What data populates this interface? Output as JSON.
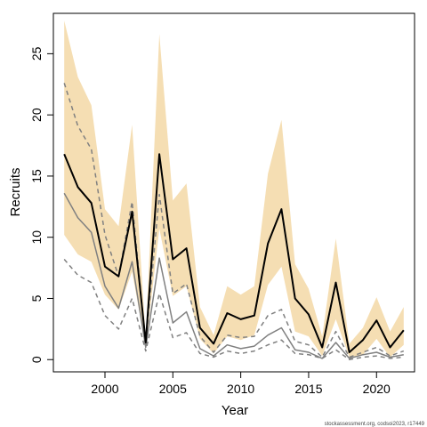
{
  "chart_data": {
    "type": "line",
    "xlabel": "Year",
    "ylabel": "Recruits",
    "xlim": [
      1996.2,
      2022.8
    ],
    "ylim": [
      -1.0,
      28.3
    ],
    "x_ticks": [
      2000,
      2005,
      2010,
      2015,
      2020
    ],
    "y_ticks": [
      0,
      5,
      10,
      15,
      20,
      25
    ],
    "grid": false,
    "x": [
      1997,
      1998,
      1999,
      2000,
      2001,
      2002,
      2003,
      2004,
      2005,
      2006,
      2007,
      2008,
      2009,
      2010,
      2011,
      2012,
      2013,
      2014,
      2015,
      2016,
      2017,
      2018,
      2019,
      2020,
      2021,
      2022
    ],
    "band": {
      "color": "#f5deb3",
      "upper": [
        27.7,
        23.1,
        20.8,
        12.3,
        10.9,
        19.2,
        1.8,
        26.6,
        13.0,
        14.4,
        4.3,
        2.0,
        6.0,
        5.3,
        6.0,
        15.2,
        19.6,
        7.8,
        5.8,
        1.9,
        9.9,
        1.3,
        2.6,
        5.1,
        2.3,
        4.3
      ],
      "lower": [
        10.2,
        8.6,
        8.0,
        5.3,
        4.1,
        7.2,
        1.0,
        10.7,
        5.2,
        6.0,
        1.7,
        0.5,
        1.9,
        1.6,
        2.0,
        6.1,
        7.6,
        2.3,
        1.9,
        0.3,
        3.3,
        0.2,
        0.4,
        1.7,
        0.2,
        1.2
      ]
    },
    "series": [
      {
        "values": [
          16.8,
          14.1,
          12.8,
          7.6,
          6.8,
          12.1,
          1.4,
          16.8,
          8.2,
          9.1,
          2.6,
          1.3,
          3.8,
          3.3,
          3.6,
          9.5,
          12.3,
          5.0,
          3.7,
          1.0,
          6.3,
          0.6,
          1.6,
          3.2,
          1.0,
          2.4
        ],
        "color": "#000000",
        "width": 2,
        "dash": ""
      },
      {
        "values": [
          13.6,
          11.6,
          10.4,
          6.0,
          4.2,
          8.0,
          1.0,
          8.3,
          3.0,
          3.9,
          0.9,
          0.3,
          1.2,
          0.9,
          1.1,
          2.0,
          2.6,
          0.8,
          0.6,
          0.1,
          1.4,
          0.1,
          0.4,
          0.6,
          0.2,
          0.4
        ],
        "color": "#808080",
        "width": 1.5,
        "dash": ""
      },
      {
        "values": [
          22.6,
          19.1,
          17.2,
          10.2,
          6.8,
          12.9,
          1.3,
          13.5,
          5.4,
          6.2,
          1.9,
          0.6,
          2.0,
          1.8,
          1.9,
          3.6,
          4.1,
          1.5,
          1.2,
          0.2,
          2.3,
          0.2,
          0.6,
          1.0,
          0.3,
          0.7
        ],
        "color": "#808080",
        "width": 1.5,
        "dash": "5,4"
      },
      {
        "values": [
          8.2,
          6.9,
          6.3,
          3.6,
          2.5,
          5.0,
          0.7,
          5.4,
          1.8,
          2.2,
          0.5,
          0.2,
          0.7,
          0.5,
          0.7,
          1.2,
          1.6,
          0.5,
          0.4,
          0.1,
          0.8,
          0.0,
          0.2,
          0.3,
          0.1,
          0.2
        ],
        "color": "#808080",
        "width": 1.5,
        "dash": "5,4"
      }
    ]
  },
  "credit": "stockassessment.org, codsoi2023, r17449"
}
